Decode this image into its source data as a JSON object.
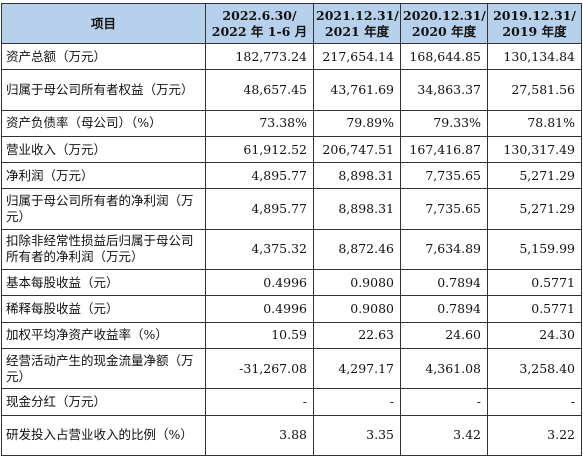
{
  "header": {
    "item_label": "项目",
    "periods": [
      {
        "line1": "2022.6.30/",
        "line2": "2022 年 1-6 月"
      },
      {
        "line1": "2021.12.31/",
        "line2": "2021 年度"
      },
      {
        "line1": "2020.12.31/",
        "line2": "2020 年度"
      },
      {
        "line1": "2019.12.31/",
        "line2": "2019 年度"
      }
    ]
  },
  "rows": [
    {
      "label": "资产总额（万元）",
      "values": [
        "182,773.24",
        "217,654.14",
        "168,644.85",
        "130,134.84"
      ]
    },
    {
      "label": "归属于母公司所有者权益（万元）",
      "values": [
        "48,657.45",
        "43,761.69",
        "34,863.37",
        "27,581.56"
      ]
    },
    {
      "label": "资产负债率（母公司）（%）",
      "values": [
        "73.38%",
        "79.89%",
        "79.33%",
        "78.81%"
      ]
    },
    {
      "label": "营业收入（万元）",
      "values": [
        "61,912.52",
        "206,747.51",
        "167,416.87",
        "130,317.49"
      ]
    },
    {
      "label": "净利润（万元）",
      "values": [
        "4,895.77",
        "8,898.31",
        "7,735.65",
        "5,271.29"
      ]
    },
    {
      "label": "归属于母公司所有者的净利润（万元）",
      "values": [
        "4,895.77",
        "8,898.31",
        "7,735.65",
        "5,271.29"
      ]
    },
    {
      "label": "扣除非经常性损益后归属于母公司所有者的净利润（万元）",
      "values": [
        "4,375.32",
        "8,872.46",
        "7,634.89",
        "5,159.99"
      ]
    },
    {
      "label": "基本每股收益（元）",
      "values": [
        "0.4996",
        "0.9080",
        "0.7894",
        "0.5771"
      ]
    },
    {
      "label": "稀释每股收益（元）",
      "values": [
        "0.4996",
        "0.9080",
        "0.7894",
        "0.5771"
      ]
    },
    {
      "label": "加权平均净资产收益率（%）",
      "values": [
        "10.59",
        "22.63",
        "24.60",
        "24.30"
      ]
    },
    {
      "label": "经营活动产生的现金流量净额（万元）",
      "values": [
        "-31,267.08",
        "4,297.17",
        "4,361.08",
        "3,258.40"
      ]
    },
    {
      "label": "现金分红（万元）",
      "values": [
        "-",
        "-",
        "-",
        "-"
      ]
    },
    {
      "label": "研发投入占营业收入的比例（%）",
      "values": [
        "3.88",
        "3.35",
        "3.42",
        "3.22"
      ]
    }
  ],
  "colors": {
    "header_background": "#b7d1ec",
    "border": "#333333"
  }
}
